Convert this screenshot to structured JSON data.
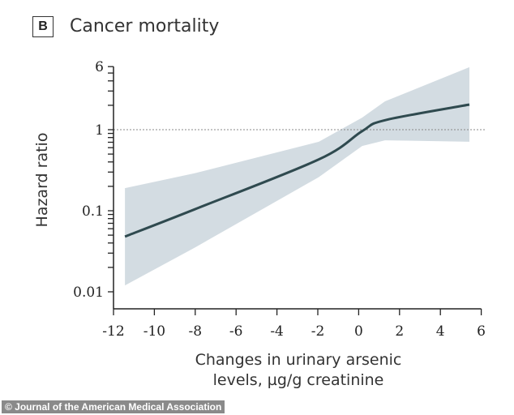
{
  "panel_label": "B",
  "credit": "© Journal of the American Medical Association",
  "chart_data": {
    "type": "line",
    "title": "Cancer mortality",
    "xlabel": [
      "Changes in urinary arsenic",
      "levels, µg/g creatinine"
    ],
    "ylabel": "Hazard ratio",
    "xlim": [
      -12,
      6
    ],
    "ylim": [
      0.01,
      6
    ],
    "yscale": "log",
    "xticks": [
      -12,
      -10,
      -8,
      -6,
      -4,
      -2,
      0,
      2,
      4,
      6
    ],
    "yticks": [
      {
        "v": 0.01,
        "label": "0.01"
      },
      {
        "v": 0.1,
        "label": "0.1"
      },
      {
        "v": 1,
        "label": "1"
      },
      {
        "v": 6,
        "label": "6"
      }
    ],
    "reference_line": 1,
    "grid": false,
    "colors": {
      "line": "#2f4a4f",
      "band": "#d3dce2",
      "ref": "#888888"
    },
    "series": [
      {
        "x": [
          -11.44,
          -8.03,
          -1.95,
          0.17,
          1.29,
          5.42
        ],
        "y": [
          0.048,
          0.104,
          0.43,
          0.96,
          1.31,
          2.04
        ],
        "lower": [
          0.012,
          0.035,
          0.26,
          0.63,
          0.74,
          0.71
        ],
        "upper": [
          0.19,
          0.29,
          0.71,
          1.41,
          2.24,
          5.9
        ]
      }
    ]
  }
}
